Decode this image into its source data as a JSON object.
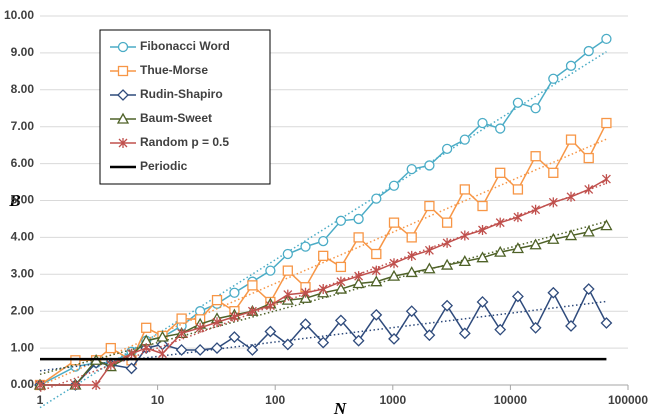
{
  "chart_data": {
    "type": "line",
    "x_label": "N",
    "y_label": "B",
    "x": [
      1,
      2,
      3,
      4,
      6,
      8,
      11,
      16,
      23,
      32,
      45,
      64,
      91,
      128,
      181,
      256,
      362,
      512,
      724,
      1024,
      1448,
      2048,
      2896,
      4096,
      5793,
      8192,
      11585,
      16384,
      23170,
      32768,
      46341,
      65536
    ],
    "series": [
      {
        "name": "Fibonacci Word",
        "color": "#4bacc6",
        "marker": "circle",
        "values": [
          0,
          0.5,
          0.6,
          0.6,
          0.9,
          1.2,
          1.3,
          1.6,
          2.0,
          2.2,
          2.5,
          2.8,
          3.1,
          3.55,
          3.75,
          3.9,
          4.45,
          4.5,
          5.05,
          5.4,
          5.85,
          5.95,
          6.4,
          6.65,
          7.1,
          6.95,
          7.65,
          7.5,
          8.3,
          8.65,
          9.05,
          9.38
        ]
      },
      {
        "name": "Thue-Morse",
        "color": "#f79646",
        "marker": "square",
        "values": [
          0,
          0.67,
          0.67,
          1.0,
          0.67,
          1.55,
          1.33,
          1.8,
          1.78,
          2.3,
          2.0,
          2.7,
          2.25,
          3.1,
          2.65,
          3.5,
          3.2,
          4.0,
          3.55,
          4.4,
          4.0,
          4.85,
          4.4,
          5.3,
          4.85,
          5.75,
          5.3,
          6.2,
          5.75,
          6.65,
          6.15,
          7.1
        ]
      },
      {
        "name": "Rudin-Shapiro",
        "color": "#2f4b7c",
        "marker": "diamond",
        "values": [
          0,
          0,
          0.6,
          0.55,
          0.45,
          1.0,
          1.1,
          0.95,
          0.95,
          1.0,
          1.3,
          0.95,
          1.45,
          1.1,
          1.65,
          1.15,
          1.75,
          1.2,
          1.9,
          1.25,
          2.0,
          1.35,
          2.15,
          1.4,
          2.25,
          1.5,
          2.4,
          1.55,
          2.5,
          1.6,
          2.6,
          1.68
        ]
      },
      {
        "name": "Baum-Sweet",
        "color": "#4f6228",
        "marker": "triangle",
        "values": [
          0,
          0,
          0.67,
          0.5,
          0.8,
          1.2,
          1.3,
          1.4,
          1.65,
          1.8,
          1.9,
          2.0,
          2.2,
          2.3,
          2.35,
          2.5,
          2.6,
          2.75,
          2.8,
          2.95,
          3.05,
          3.15,
          3.25,
          3.35,
          3.45,
          3.6,
          3.7,
          3.8,
          3.95,
          4.05,
          4.15,
          4.32
        ]
      },
      {
        "name": "Random p = 0.5",
        "color": "#c0504d",
        "marker": "x",
        "values": [
          0,
          0,
          0,
          0.55,
          0.85,
          1.0,
          0.85,
          1.4,
          1.55,
          1.7,
          1.85,
          2.0,
          2.15,
          2.45,
          2.5,
          2.6,
          2.8,
          2.95,
          3.1,
          3.3,
          3.5,
          3.65,
          3.85,
          4.05,
          4.2,
          4.4,
          4.55,
          4.75,
          4.95,
          5.1,
          5.3,
          5.58
        ]
      },
      {
        "name": "Periodic",
        "color": "#000000",
        "marker": "none",
        "values": [
          0.7,
          0.7,
          0.7,
          0.7,
          0.7,
          0.7,
          0.7,
          0.7,
          0.7,
          0.7,
          0.7,
          0.7,
          0.7,
          0.7,
          0.7,
          0.7,
          0.7,
          0.7,
          0.7,
          0.7,
          0.7,
          0.7,
          0.7,
          0.7,
          0.7,
          0.7,
          0.7,
          0.7,
          0.7,
          0.7,
          0.7,
          0.7
        ]
      }
    ],
    "xscale": "log",
    "xlim": [
      1,
      100000
    ],
    "xticks": [
      1,
      10,
      100,
      1000,
      10000,
      100000
    ],
    "ylim": [
      0,
      10
    ],
    "yticks": [
      {
        "value": 0,
        "label": "0.00"
      },
      {
        "value": 1,
        "label": "1.00"
      },
      {
        "value": 2,
        "label": "2.00"
      },
      {
        "value": 3,
        "label": "3.00"
      },
      {
        "value": 4,
        "label": "4.00"
      },
      {
        "value": 5,
        "label": "5.00"
      },
      {
        "value": 6,
        "label": "6.00"
      },
      {
        "value": 7,
        "label": "7.00"
      },
      {
        "value": 8,
        "label": "8.00"
      },
      {
        "value": 9,
        "label": "9.00"
      },
      {
        "value": 10,
        "label": "10.00"
      }
    ],
    "grid": true,
    "trendlines": true,
    "legend": "upper left"
  }
}
